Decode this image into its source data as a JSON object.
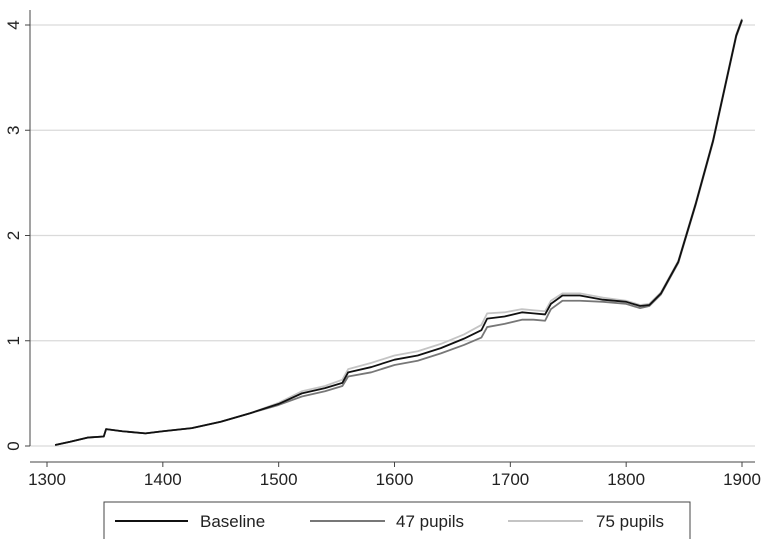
{
  "chart_data": {
    "type": "line",
    "title": "",
    "xlabel": "",
    "ylabel": "",
    "xlim": [
      1300,
      1900
    ],
    "ylim": [
      0,
      4
    ],
    "x_ticks": [
      "1300",
      "1400",
      "1500",
      "1600",
      "1700",
      "1800",
      "1900"
    ],
    "y_ticks": [
      "0",
      "1",
      "2",
      "3",
      "4"
    ],
    "grid": "horizontal",
    "legend_position": "bottom",
    "series": [
      {
        "name": "Baseline",
        "color": "#111111",
        "points": [
          [
            1307,
            0.01
          ],
          [
            1320,
            0.04
          ],
          [
            1335,
            0.08
          ],
          [
            1349,
            0.09
          ],
          [
            1351,
            0.16
          ],
          [
            1365,
            0.14
          ],
          [
            1385,
            0.12
          ],
          [
            1400,
            0.14
          ],
          [
            1425,
            0.17
          ],
          [
            1450,
            0.23
          ],
          [
            1475,
            0.31
          ],
          [
            1500,
            0.4
          ],
          [
            1520,
            0.5
          ],
          [
            1540,
            0.55
          ],
          [
            1555,
            0.6
          ],
          [
            1560,
            0.7
          ],
          [
            1580,
            0.75
          ],
          [
            1600,
            0.82
          ],
          [
            1620,
            0.86
          ],
          [
            1640,
            0.93
          ],
          [
            1660,
            1.02
          ],
          [
            1675,
            1.1
          ],
          [
            1680,
            1.21
          ],
          [
            1695,
            1.23
          ],
          [
            1710,
            1.27
          ],
          [
            1720,
            1.26
          ],
          [
            1730,
            1.25
          ],
          [
            1735,
            1.35
          ],
          [
            1745,
            1.43
          ],
          [
            1760,
            1.43
          ],
          [
            1780,
            1.39
          ],
          [
            1800,
            1.37
          ],
          [
            1812,
            1.33
          ],
          [
            1820,
            1.34
          ],
          [
            1830,
            1.45
          ],
          [
            1845,
            1.75
          ],
          [
            1860,
            2.3
          ],
          [
            1875,
            2.9
          ],
          [
            1885,
            3.4
          ],
          [
            1895,
            3.9
          ],
          [
            1900,
            4.05
          ]
        ]
      },
      {
        "name": "47 pupils",
        "color": "#777777",
        "points": [
          [
            1307,
            0.01
          ],
          [
            1320,
            0.04
          ],
          [
            1335,
            0.08
          ],
          [
            1349,
            0.09
          ],
          [
            1351,
            0.16
          ],
          [
            1365,
            0.14
          ],
          [
            1385,
            0.12
          ],
          [
            1400,
            0.14
          ],
          [
            1425,
            0.17
          ],
          [
            1450,
            0.23
          ],
          [
            1475,
            0.31
          ],
          [
            1500,
            0.39
          ],
          [
            1520,
            0.47
          ],
          [
            1540,
            0.52
          ],
          [
            1555,
            0.57
          ],
          [
            1560,
            0.66
          ],
          [
            1580,
            0.7
          ],
          [
            1600,
            0.77
          ],
          [
            1620,
            0.81
          ],
          [
            1640,
            0.88
          ],
          [
            1660,
            0.96
          ],
          [
            1675,
            1.03
          ],
          [
            1680,
            1.13
          ],
          [
            1695,
            1.16
          ],
          [
            1710,
            1.2
          ],
          [
            1720,
            1.2
          ],
          [
            1730,
            1.19
          ],
          [
            1735,
            1.3
          ],
          [
            1745,
            1.38
          ],
          [
            1760,
            1.38
          ],
          [
            1780,
            1.37
          ],
          [
            1800,
            1.35
          ],
          [
            1812,
            1.31
          ],
          [
            1820,
            1.33
          ],
          [
            1830,
            1.44
          ],
          [
            1845,
            1.74
          ],
          [
            1860,
            2.29
          ],
          [
            1875,
            2.89
          ],
          [
            1885,
            3.39
          ],
          [
            1895,
            3.89
          ],
          [
            1900,
            4.04
          ]
        ]
      },
      {
        "name": "75 pupils",
        "color": "#c4c4c4",
        "points": [
          [
            1307,
            0.01
          ],
          [
            1320,
            0.04
          ],
          [
            1335,
            0.08
          ],
          [
            1349,
            0.09
          ],
          [
            1351,
            0.16
          ],
          [
            1365,
            0.14
          ],
          [
            1385,
            0.12
          ],
          [
            1400,
            0.14
          ],
          [
            1425,
            0.17
          ],
          [
            1450,
            0.23
          ],
          [
            1475,
            0.31
          ],
          [
            1500,
            0.41
          ],
          [
            1520,
            0.52
          ],
          [
            1540,
            0.57
          ],
          [
            1555,
            0.63
          ],
          [
            1560,
            0.73
          ],
          [
            1580,
            0.79
          ],
          [
            1600,
            0.86
          ],
          [
            1620,
            0.9
          ],
          [
            1640,
            0.97
          ],
          [
            1660,
            1.06
          ],
          [
            1675,
            1.15
          ],
          [
            1680,
            1.26
          ],
          [
            1695,
            1.27
          ],
          [
            1710,
            1.3
          ],
          [
            1720,
            1.29
          ],
          [
            1730,
            1.28
          ],
          [
            1735,
            1.38
          ],
          [
            1745,
            1.45
          ],
          [
            1760,
            1.45
          ],
          [
            1780,
            1.41
          ],
          [
            1800,
            1.38
          ],
          [
            1812,
            1.34
          ],
          [
            1820,
            1.35
          ],
          [
            1830,
            1.46
          ],
          [
            1845,
            1.76
          ],
          [
            1860,
            2.31
          ],
          [
            1875,
            2.91
          ],
          [
            1885,
            3.41
          ],
          [
            1895,
            3.91
          ],
          [
            1900,
            4.06
          ]
        ]
      }
    ]
  }
}
